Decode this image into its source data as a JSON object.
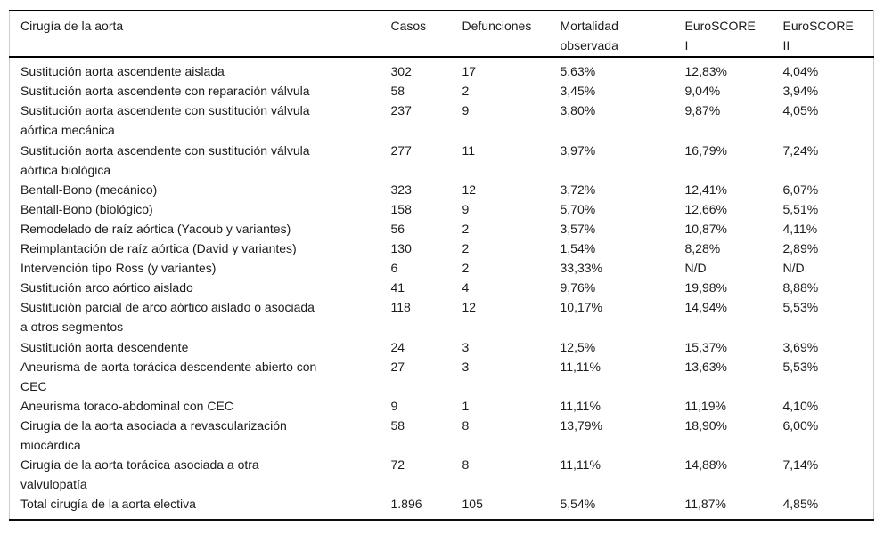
{
  "table": {
    "header": [
      [
        "Cirugía de la aorta"
      ],
      [
        "Casos"
      ],
      [
        "Defunciones"
      ],
      [
        "Mortalidad",
        "observada"
      ],
      [
        "EuroSCORE",
        "I"
      ],
      [
        "EuroSCORE",
        "II"
      ]
    ],
    "rows": [
      {
        "name": [
          "Sustitución aorta ascendente aislada"
        ],
        "casos": "302",
        "defunciones": "17",
        "mortalidad": "5,63%",
        "euroscore1": "12,83%",
        "euroscore2": "4,04%"
      },
      {
        "name": [
          "Sustitución aorta ascendente con reparación válvula"
        ],
        "casos": "58",
        "defunciones": "2",
        "mortalidad": "3,45%",
        "euroscore1": "9,04%",
        "euroscore2": "3,94%"
      },
      {
        "name": [
          "Sustitución aorta ascendente con sustitución válvula",
          "aórtica mecánica"
        ],
        "casos": "237",
        "defunciones": "9",
        "mortalidad": "3,80%",
        "euroscore1": "9,87%",
        "euroscore2": "4,05%"
      },
      {
        "name": [
          "Sustitución aorta ascendente con sustitución válvula",
          "aórtica biológica"
        ],
        "casos": "277",
        "defunciones": "11",
        "mortalidad": "3,97%",
        "euroscore1": "16,79%",
        "euroscore2": "7,24%"
      },
      {
        "name": [
          "Bentall-Bono (mecánico)"
        ],
        "casos": "323",
        "defunciones": "12",
        "mortalidad": "3,72%",
        "euroscore1": "12,41%",
        "euroscore2": "6,07%"
      },
      {
        "name": [
          "Bentall-Bono (biológico)"
        ],
        "casos": "158",
        "defunciones": "9",
        "mortalidad": "5,70%",
        "euroscore1": "12,66%",
        "euroscore2": "5,51%"
      },
      {
        "name": [
          "Remodelado de raíz aórtica (Yacoub y variantes)"
        ],
        "casos": "56",
        "defunciones": "2",
        "mortalidad": "3,57%",
        "euroscore1": "10,87%",
        "euroscore2": "4,11%"
      },
      {
        "name": [
          "Reimplantación de raíz aórtica (David y variantes)"
        ],
        "casos": "130",
        "defunciones": "2",
        "mortalidad": "1,54%",
        "euroscore1": "8,28%",
        "euroscore2": "2,89%"
      },
      {
        "name": [
          "Intervención tipo Ross (y variantes)"
        ],
        "casos": "6",
        "defunciones": "2",
        "mortalidad": "33,33%",
        "euroscore1": "N/D",
        "euroscore2": "N/D"
      },
      {
        "name": [
          "Sustitución arco aórtico aislado"
        ],
        "casos": "41",
        "defunciones": "4",
        "mortalidad": "9,76%",
        "euroscore1": "19,98%",
        "euroscore2": "8,88%"
      },
      {
        "name": [
          "Sustitución parcial de arco aórtico aislado o asociada",
          "a otros segmentos"
        ],
        "casos": "118",
        "defunciones": "12",
        "mortalidad": "10,17%",
        "euroscore1": "14,94%",
        "euroscore2": "5,53%"
      },
      {
        "name": [
          "Sustitución aorta descendente"
        ],
        "casos": "24",
        "defunciones": "3",
        "mortalidad": "12,5%",
        "euroscore1": "15,37%",
        "euroscore2": "3,69%"
      },
      {
        "name": [
          "Aneurisma de aorta torácica descendente abierto con",
          "CEC"
        ],
        "casos": "27",
        "defunciones": "3",
        "mortalidad": "11,11%",
        "euroscore1": "13,63%",
        "euroscore2": "5,53%"
      },
      {
        "name": [
          "Aneurisma toraco-abdominal con CEC"
        ],
        "casos": "9",
        "defunciones": "1",
        "mortalidad": "11,11%",
        "euroscore1": "11,19%",
        "euroscore2": "4,10%"
      },
      {
        "name": [
          "Cirugía de la aorta asociada a revascularización",
          "miocárdica"
        ],
        "casos": "58",
        "defunciones": "8",
        "mortalidad": "13,79%",
        "euroscore1": "18,90%",
        "euroscore2": "6,00%"
      },
      {
        "name": [
          "Cirugía de la aorta torácica asociada a otra",
          "valvulopatía"
        ],
        "casos": "72",
        "defunciones": "8",
        "mortalidad": "11,11%",
        "euroscore1": "14,88%",
        "euroscore2": "7,14%"
      },
      {
        "name": [
          "Total cirugía de la aorta electiva"
        ],
        "casos": "1.896",
        "defunciones": "105",
        "mortalidad": "5,54%",
        "euroscore1": "11,87%",
        "euroscore2": "4,85%"
      }
    ]
  }
}
